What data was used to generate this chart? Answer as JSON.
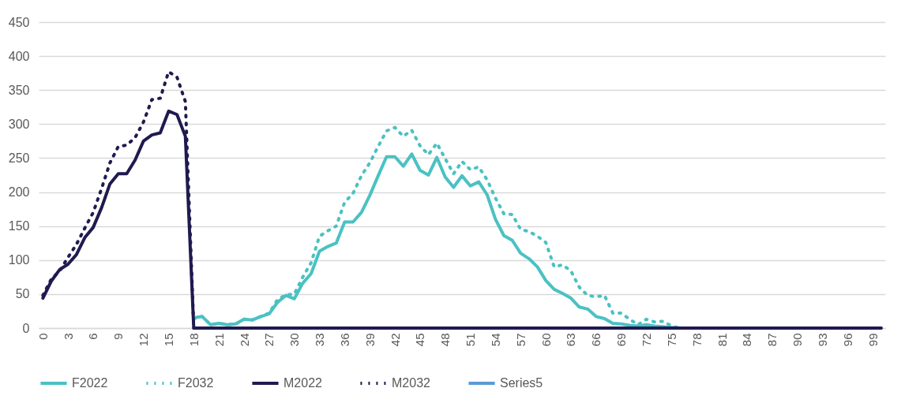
{
  "chart_data": {
    "type": "line",
    "categories": [
      "0",
      null,
      null,
      "3",
      null,
      null,
      "6",
      null,
      null,
      "9",
      null,
      null,
      "12",
      null,
      null,
      "15",
      null,
      null,
      "18",
      null,
      null,
      "21",
      null,
      null,
      "24",
      null,
      null,
      "27",
      null,
      null,
      "30",
      null,
      null,
      "33",
      null,
      null,
      "36",
      null,
      null,
      "39",
      null,
      null,
      "42",
      null,
      null,
      "45",
      null,
      null,
      "48",
      null,
      null,
      "51",
      null,
      null,
      "54",
      null,
      null,
      "57",
      null,
      null,
      "60",
      null,
      null,
      "63",
      null,
      null,
      "66",
      null,
      null,
      "69",
      null,
      null,
      "72",
      null,
      null,
      "75",
      null,
      null,
      "78",
      null,
      null,
      "81",
      null,
      null,
      "84",
      null,
      null,
      "87",
      null,
      null,
      "90",
      null,
      null,
      "93",
      null,
      null,
      "96",
      null,
      null,
      "99",
      null
    ],
    "series": [
      {
        "name": "F2022",
        "color": "#4bc1c3",
        "line_style": "solid",
        "values": [
          null,
          null,
          null,
          null,
          null,
          null,
          null,
          null,
          null,
          null,
          null,
          null,
          null,
          null,
          null,
          null,
          null,
          null,
          15,
          17,
          5,
          7,
          5,
          6,
          13,
          12,
          17,
          21,
          38,
          48,
          43,
          66,
          80,
          113,
          120,
          125,
          156,
          156,
          170,
          195,
          224,
          252,
          252,
          238,
          256,
          232,
          225,
          251,
          222,
          207,
          224,
          209,
          215,
          196,
          160,
          136,
          129,
          110,
          102,
          90,
          70,
          57,
          51,
          44,
          31,
          28,
          17,
          14,
          7,
          6,
          4,
          3,
          5,
          3,
          2,
          1,
          0,
          0,
          null,
          null,
          null,
          null,
          null,
          null,
          null,
          null,
          null,
          null,
          null,
          null,
          null,
          null,
          null,
          null,
          null,
          null,
          null,
          null,
          null,
          null,
          null
        ]
      },
      {
        "name": "F2032",
        "color": "#4bc1c3",
        "line_style": "dotted",
        "values": [
          null,
          null,
          null,
          null,
          null,
          null,
          null,
          null,
          null,
          null,
          null,
          null,
          null,
          null,
          null,
          null,
          null,
          null,
          14,
          17,
          5,
          7,
          5,
          6,
          13,
          12,
          17,
          22,
          42,
          49,
          50,
          75,
          96,
          135,
          143,
          150,
          185,
          198,
          224,
          243,
          267,
          290,
          295,
          282,
          291,
          268,
          255,
          272,
          249,
          227,
          245,
          233,
          237,
          218,
          191,
          168,
          167,
          145,
          142,
          135,
          126,
          90,
          93,
          84,
          60,
          48,
          46,
          48,
          22,
          22,
          13,
          5,
          13,
          9,
          10,
          3,
          0,
          0,
          null,
          null,
          null,
          null,
          null,
          null,
          null,
          null,
          null,
          null,
          null,
          null,
          null,
          null,
          null,
          null,
          null,
          null,
          null,
          null,
          null,
          null,
          null
        ]
      },
      {
        "name": "M2022",
        "color": "#1f1a4f",
        "line_style": "solid",
        "values": [
          44,
          69,
          86,
          94,
          108,
          133,
          148,
          177,
          212,
          227,
          227,
          247,
          275,
          284,
          287,
          319,
          314,
          282,
          0,
          0,
          0,
          0,
          0,
          0,
          0,
          0,
          0,
          0,
          0,
          0,
          0,
          0,
          0,
          0,
          0,
          0,
          0,
          0,
          0,
          0,
          0,
          0,
          0,
          0,
          0,
          0,
          0,
          0,
          0,
          0,
          0,
          0,
          0,
          0,
          0,
          0,
          0,
          0,
          0,
          0,
          0,
          0,
          0,
          0,
          0,
          0,
          0,
          0,
          0,
          0,
          0,
          0,
          0,
          0,
          0,
          0,
          0,
          0,
          0,
          0,
          0,
          0,
          0,
          0,
          0,
          0,
          0,
          0,
          0,
          0,
          0,
          0,
          0,
          0,
          0,
          0,
          0,
          0,
          0,
          0,
          0
        ]
      },
      {
        "name": "M2032",
        "color": "#1f1a4f",
        "line_style": "dotted",
        "values": [
          48,
          72,
          84,
          104,
          123,
          147,
          170,
          205,
          243,
          267,
          269,
          280,
          303,
          336,
          338,
          377,
          369,
          333,
          0,
          0,
          0,
          0,
          0,
          0,
          0,
          0,
          0,
          0,
          0,
          0,
          0,
          0,
          0,
          0,
          0,
          0,
          0,
          0,
          0,
          0,
          0,
          0,
          0,
          0,
          0,
          0,
          0,
          0,
          0,
          0,
          0,
          0,
          0,
          0,
          0,
          0,
          0,
          0,
          0,
          0,
          0,
          0,
          0,
          0,
          0,
          0,
          0,
          0,
          0,
          0,
          0,
          0,
          0,
          0,
          0,
          0,
          0,
          0,
          0,
          0,
          0,
          0,
          0,
          0,
          0,
          0,
          0,
          0,
          0,
          0,
          0,
          0,
          0,
          0,
          0,
          0,
          0,
          0,
          0,
          0,
          0
        ]
      },
      {
        "name": "Series5",
        "color": "#5b9bd5",
        "line_style": "solid",
        "values": [
          null,
          null,
          null,
          null,
          null,
          null,
          null,
          null,
          null,
          null,
          null,
          null,
          null,
          null,
          null,
          null,
          null,
          null,
          null,
          null,
          null,
          null,
          null,
          null,
          null,
          null,
          null,
          null,
          null,
          null,
          null,
          null,
          null,
          null,
          null,
          null,
          null,
          null,
          null,
          null,
          null,
          null,
          null,
          null,
          null,
          null,
          null,
          null,
          null,
          null,
          null,
          null,
          null,
          null,
          null,
          null,
          null,
          null,
          null,
          null,
          null,
          null,
          null,
          null,
          null,
          null,
          null,
          null,
          null,
          null,
          null,
          null,
          null,
          null,
          null,
          null,
          null,
          null,
          null,
          null,
          null,
          null,
          null,
          null,
          null,
          null,
          null,
          null,
          null,
          null,
          null,
          null,
          null,
          null,
          null,
          null,
          null,
          null,
          null,
          null,
          null
        ]
      }
    ],
    "ylim": [
      0,
      450
    ],
    "yticks": [
      0,
      50,
      100,
      150,
      200,
      250,
      300,
      350,
      400,
      450
    ],
    "grid": "y",
    "legend": "bottom",
    "marker": "none"
  }
}
